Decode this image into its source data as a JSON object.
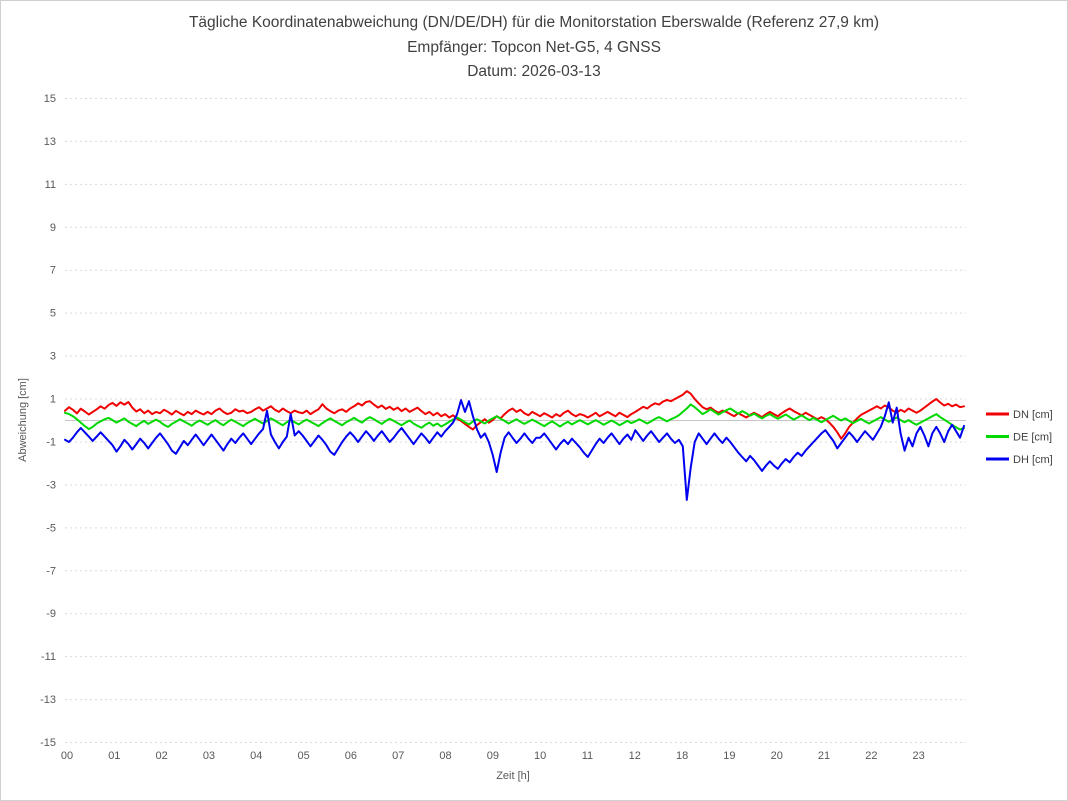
{
  "chart": {
    "title": "Tägliche Koordinatenabweichung (DN/DE/DH) für die Monitorstation Eberswalde (Referenz 27,9 km)",
    "subtitle_receiver": "Empfänger: Topcon Net-G5, 4 GNSS",
    "subtitle_date": "Datum: 2026-03-13"
  },
  "chart_data": {
    "type": "line",
    "title": "Tägliche Koordinatenabweichung (DN/DE/DH) für die Monitorstation Eberswalde (Referenz 27,9 km)",
    "subtitle": [
      "Empfänger: Topcon Net-G5, 4 GNSS",
      "Datum: 2026-03-13"
    ],
    "xlabel": "Zeit [h]",
    "ylabel": "Abweichung [cm]",
    "ylim": [
      -15,
      15
    ],
    "yticks": [
      15,
      13,
      11,
      9,
      7,
      5,
      3,
      1,
      -1,
      -3,
      -5,
      -7,
      -9,
      -11,
      -13,
      -15
    ],
    "x_categories": [
      "00",
      "01",
      "02",
      "03",
      "04",
      "05",
      "06",
      "07",
      "08",
      "09",
      "10",
      "11",
      "12",
      "18",
      "19",
      "20",
      "21",
      "22",
      "23"
    ],
    "samples_per_hour": 12,
    "grid": "horizontal-dotted",
    "zero_line": "solid",
    "legend_position": "right",
    "colors": {
      "grid": "#d9d9d9",
      "zero_line": "#c6c6c6",
      "tick_text": "#595959",
      "title_text": "#404040"
    },
    "series": [
      {
        "name": "DN [cm]",
        "color": "#f00000",
        "values": [
          0.45,
          0.62,
          0.5,
          0.33,
          0.55,
          0.42,
          0.28,
          0.4,
          0.52,
          0.66,
          0.55,
          0.72,
          0.82,
          0.68,
          0.85,
          0.74,
          0.86,
          0.6,
          0.42,
          0.52,
          0.34,
          0.46,
          0.3,
          0.4,
          0.34,
          0.5,
          0.4,
          0.28,
          0.45,
          0.34,
          0.24,
          0.4,
          0.3,
          0.46,
          0.36,
          0.28,
          0.4,
          0.3,
          0.46,
          0.56,
          0.4,
          0.3,
          0.36,
          0.52,
          0.42,
          0.46,
          0.34,
          0.4,
          0.52,
          0.62,
          0.46,
          0.56,
          0.66,
          0.5,
          0.4,
          0.56,
          0.44,
          0.34,
          0.46,
          0.38,
          0.34,
          0.46,
          0.3,
          0.42,
          0.52,
          0.76,
          0.56,
          0.44,
          0.34,
          0.46,
          0.52,
          0.4,
          0.56,
          0.66,
          0.8,
          0.7,
          0.86,
          0.9,
          0.74,
          0.6,
          0.7,
          0.54,
          0.64,
          0.5,
          0.6,
          0.44,
          0.56,
          0.4,
          0.5,
          0.6,
          0.44,
          0.3,
          0.4,
          0.24,
          0.36,
          0.2,
          0.3,
          0.14,
          0.24,
          0.08,
          -0.02,
          -0.16,
          -0.3,
          -0.42,
          -0.22,
          -0.08,
          0.06,
          -0.1,
          0.02,
          0.2,
          0.1,
          0.3,
          0.46,
          0.56,
          0.4,
          0.5,
          0.34,
          0.24,
          0.4,
          0.3,
          0.2,
          0.34,
          0.24,
          0.14,
          0.3,
          0.2,
          0.36,
          0.46,
          0.3,
          0.2,
          0.3,
          0.24,
          0.14,
          0.24,
          0.36,
          0.2,
          0.3,
          0.4,
          0.3,
          0.2,
          0.36,
          0.26,
          0.16,
          0.3,
          0.4,
          0.52,
          0.64,
          0.56,
          0.7,
          0.8,
          0.74,
          0.88,
          0.96,
          0.9,
          1.0,
          1.1,
          1.2,
          1.37,
          1.25,
          1.0,
          0.8,
          0.62,
          0.52,
          0.6,
          0.46,
          0.36,
          0.46,
          0.4,
          0.3,
          0.2,
          0.34,
          0.24,
          0.14,
          0.26,
          0.36,
          0.26,
          0.16,
          0.3,
          0.4,
          0.3,
          0.2,
          0.34,
          0.46,
          0.56,
          0.44,
          0.34,
          0.24,
          0.36,
          0.26,
          0.16,
          0.06,
          0.16,
          0.06,
          -0.1,
          -0.3,
          -0.55,
          -0.85,
          -0.6,
          -0.3,
          -0.1,
          0.1,
          0.26,
          0.36,
          0.46,
          0.56,
          0.66,
          0.56,
          0.7,
          0.6,
          0.46,
          0.36,
          0.5,
          0.4,
          0.56,
          0.46,
          0.36,
          0.46,
          0.6,
          0.74,
          0.88,
          1.0,
          0.84,
          0.7,
          0.78,
          0.66,
          0.74,
          0.62,
          0.66
        ]
      },
      {
        "name": "DE [cm]",
        "color": "#00d800",
        "values": [
          0.36,
          0.3,
          0.2,
          0.06,
          -0.1,
          -0.26,
          -0.4,
          -0.3,
          -0.14,
          -0.04,
          0.06,
          0.12,
          0.02,
          -0.1,
          0.0,
          0.1,
          -0.06,
          -0.16,
          -0.26,
          -0.12,
          -0.02,
          -0.16,
          -0.06,
          0.04,
          -0.06,
          -0.2,
          -0.3,
          -0.16,
          -0.06,
          0.06,
          -0.04,
          -0.14,
          -0.24,
          -0.1,
          0.0,
          -0.1,
          -0.2,
          -0.08,
          0.02,
          -0.12,
          -0.22,
          -0.08,
          0.04,
          -0.06,
          -0.16,
          -0.26,
          -0.12,
          -0.02,
          0.08,
          -0.04,
          -0.14,
          -0.02,
          0.1,
          0.0,
          -0.12,
          -0.22,
          -0.08,
          0.02,
          -0.08,
          -0.18,
          -0.06,
          0.04,
          -0.06,
          -0.16,
          -0.26,
          -0.12,
          0.0,
          0.1,
          -0.02,
          -0.12,
          -0.22,
          -0.08,
          0.02,
          0.12,
          0.0,
          -0.1,
          0.06,
          0.16,
          0.06,
          -0.06,
          -0.16,
          -0.02,
          0.08,
          -0.02,
          -0.12,
          -0.22,
          -0.1,
          0.0,
          -0.14,
          -0.24,
          -0.34,
          -0.2,
          -0.1,
          -0.24,
          -0.14,
          -0.28,
          -0.18,
          -0.06,
          0.04,
          0.14,
          0.04,
          -0.08,
          -0.18,
          -0.04,
          0.06,
          -0.04,
          -0.14,
          0.0,
          0.1,
          0.2,
          0.08,
          -0.02,
          -0.14,
          -0.04,
          0.06,
          -0.06,
          -0.16,
          -0.06,
          0.04,
          -0.06,
          -0.16,
          -0.26,
          -0.14,
          -0.04,
          -0.16,
          -0.28,
          -0.16,
          -0.06,
          -0.18,
          -0.08,
          0.02,
          -0.08,
          -0.18,
          -0.08,
          0.02,
          -0.08,
          -0.2,
          -0.1,
          0.0,
          -0.1,
          -0.22,
          -0.12,
          -0.02,
          -0.12,
          -0.04,
          0.06,
          -0.04,
          -0.14,
          -0.04,
          0.08,
          0.16,
          0.06,
          -0.04,
          0.06,
          0.14,
          0.24,
          0.4,
          0.56,
          0.75,
          0.62,
          0.46,
          0.3,
          0.4,
          0.52,
          0.4,
          0.28,
          0.38,
          0.48,
          0.56,
          0.44,
          0.32,
          0.44,
          0.34,
          0.22,
          0.32,
          0.2,
          0.1,
          0.22,
          0.3,
          0.18,
          0.08,
          0.18,
          0.28,
          0.16,
          0.04,
          0.14,
          0.24,
          0.12,
          0.02,
          0.12,
          0.02,
          -0.08,
          0.02,
          0.12,
          0.22,
          0.1,
          0.0,
          0.1,
          -0.02,
          -0.12,
          -0.02,
          0.08,
          -0.04,
          -0.14,
          -0.04,
          0.06,
          0.16,
          0.04,
          -0.06,
          0.04,
          0.14,
          0.02,
          -0.08,
          0.02,
          -0.1,
          -0.2,
          -0.1,
          0.0,
          0.1,
          0.2,
          0.3,
          0.16,
          0.04,
          -0.08,
          -0.2,
          -0.32,
          -0.42,
          -0.36
        ]
      },
      {
        "name": "DH [cm]",
        "color": "#0000f0",
        "values": [
          -0.9,
          -1.0,
          -0.8,
          -0.55,
          -0.35,
          -0.55,
          -0.75,
          -0.95,
          -0.75,
          -0.55,
          -0.75,
          -0.95,
          -1.15,
          -1.45,
          -1.2,
          -0.9,
          -1.1,
          -1.35,
          -1.1,
          -0.85,
          -1.05,
          -1.3,
          -1.05,
          -0.8,
          -0.6,
          -0.85,
          -1.1,
          -1.4,
          -1.55,
          -1.25,
          -0.95,
          -1.15,
          -0.9,
          -0.65,
          -0.9,
          -1.15,
          -0.9,
          -0.65,
          -0.9,
          -1.15,
          -1.4,
          -1.1,
          -0.85,
          -1.05,
          -0.8,
          -0.6,
          -0.85,
          -1.1,
          -0.85,
          -0.6,
          -0.4,
          0.45,
          -0.65,
          -1.0,
          -1.3,
          -1.0,
          -0.75,
          0.3,
          -0.7,
          -0.5,
          -0.7,
          -0.95,
          -1.2,
          -0.95,
          -0.7,
          -0.9,
          -1.15,
          -1.45,
          -1.6,
          -1.3,
          -1.0,
          -0.75,
          -0.55,
          -0.75,
          -1.0,
          -0.75,
          -0.5,
          -0.7,
          -0.95,
          -0.7,
          -0.5,
          -0.75,
          -1.0,
          -0.8,
          -0.55,
          -0.35,
          -0.6,
          -0.85,
          -1.1,
          -0.85,
          -0.6,
          -0.8,
          -1.05,
          -0.8,
          -0.55,
          -0.75,
          -0.5,
          -0.3,
          -0.1,
          0.3,
          0.95,
          0.4,
          0.9,
          0.2,
          -0.4,
          -0.8,
          -0.6,
          -1.0,
          -1.6,
          -2.4,
          -1.5,
          -0.8,
          -0.55,
          -0.8,
          -1.05,
          -0.85,
          -0.6,
          -0.85,
          -1.05,
          -0.8,
          -0.8,
          -0.6,
          -0.85,
          -1.1,
          -1.35,
          -1.1,
          -0.9,
          -1.1,
          -0.85,
          -1.05,
          -1.25,
          -1.5,
          -1.7,
          -1.4,
          -1.1,
          -0.85,
          -1.05,
          -0.8,
          -0.6,
          -0.85,
          -1.1,
          -0.85,
          -0.65,
          -0.9,
          -0.45,
          -0.7,
          -0.95,
          -0.7,
          -0.5,
          -0.75,
          -1.0,
          -0.8,
          -0.6,
          -0.85,
          -1.05,
          -0.9,
          -1.2,
          -3.7,
          -2.2,
          -1.0,
          -0.6,
          -0.85,
          -1.1,
          -0.85,
          -0.6,
          -0.85,
          -1.05,
          -0.8,
          -1.0,
          -1.25,
          -1.5,
          -1.7,
          -1.9,
          -1.65,
          -1.85,
          -2.1,
          -2.35,
          -2.1,
          -1.9,
          -2.1,
          -2.25,
          -2.0,
          -1.8,
          -1.95,
          -1.7,
          -1.5,
          -1.65,
          -1.4,
          -1.2,
          -1.0,
          -0.8,
          -0.6,
          -0.45,
          -0.7,
          -0.95,
          -1.3,
          -1.05,
          -0.8,
          -0.55,
          -0.75,
          -1.0,
          -0.75,
          -0.5,
          -0.7,
          -0.9,
          -0.6,
          -0.3,
          0.2,
          0.85,
          -0.1,
          0.6,
          -0.6,
          -1.4,
          -0.8,
          -1.2,
          -0.6,
          -0.3,
          -0.7,
          -1.2,
          -0.6,
          -0.3,
          -0.6,
          -1.0,
          -0.5,
          -0.2,
          -0.5,
          -0.8,
          -0.25
        ]
      }
    ]
  }
}
